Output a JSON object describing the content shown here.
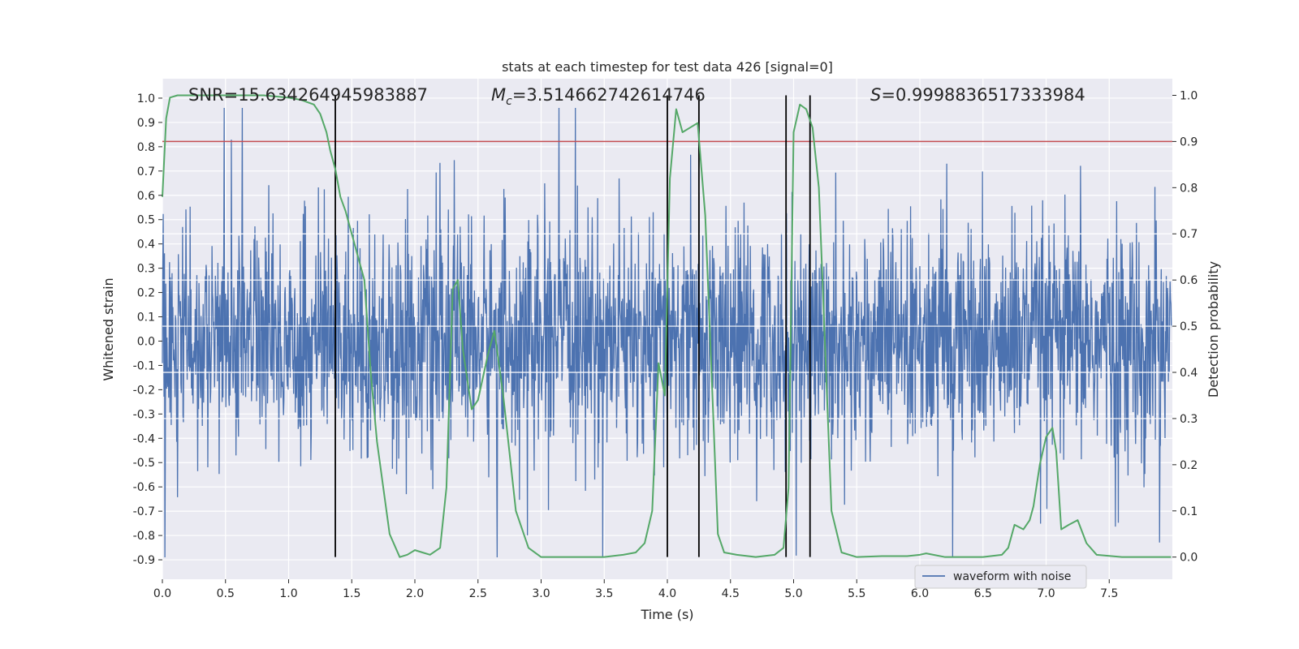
{
  "chart_data": {
    "type": "line",
    "title": "stats at each timestep for test data 426 [signal=0]",
    "xlabel": "Time (s)",
    "ylabel": "Whitened strain",
    "y2label": "Detection probability",
    "xlim": [
      0.0,
      8.0
    ],
    "ylim": [
      -0.98,
      1.08
    ],
    "y2lim": [
      -0.048,
      1.036
    ],
    "xticks": [
      "0.0",
      "0.5",
      "1.0",
      "1.5",
      "2.0",
      "2.5",
      "3.0",
      "3.5",
      "4.0",
      "4.5",
      "5.0",
      "5.5",
      "6.0",
      "6.5",
      "7.0",
      "7.5"
    ],
    "yticks": [
      "1.0",
      "0.9",
      "0.8",
      "0.7",
      "0.6",
      "0.5",
      "0.4",
      "0.3",
      "0.2",
      "0.1",
      "0.0",
      "-0.1",
      "-0.2",
      "-0.3",
      "-0.4",
      "-0.5",
      "-0.6",
      "-0.7",
      "-0.8",
      "-0.9"
    ],
    "y2ticks": [
      "0.0",
      "0.1",
      "0.2",
      "0.3",
      "0.4",
      "0.5",
      "0.6",
      "0.7",
      "0.8",
      "0.9",
      "1.0"
    ],
    "grid": true,
    "legend_placement": "bottom-right",
    "annotations": {
      "snr": "SNR=15.634264945983887",
      "mc_symbol": "M",
      "mc_sub": "c",
      "mc_value": "=3.514662742614746",
      "s_symbol": "S",
      "s_value": "=0.9998836517333984"
    },
    "series": [
      {
        "name": "waveform with noise",
        "color": "#4c72b0",
        "axis": "left",
        "note_style": "dense noise trace",
        "sample_count": 2400
      },
      {
        "name": "",
        "color": "#55a868",
        "axis": "right",
        "x": [
          0.0,
          0.03,
          0.06,
          0.12,
          0.2,
          0.4,
          0.6,
          0.8,
          1.0,
          1.1,
          1.2,
          1.25,
          1.3,
          1.33,
          1.37,
          1.41,
          1.45,
          1.5,
          1.55,
          1.6,
          1.65,
          1.7,
          1.8,
          1.88,
          1.94,
          2.0,
          2.06,
          2.12,
          2.2,
          2.25,
          2.3,
          2.34,
          2.38,
          2.45,
          2.5,
          2.58,
          2.63,
          2.7,
          2.8,
          2.9,
          3.0,
          3.2,
          3.5,
          3.65,
          3.75,
          3.82,
          3.88,
          3.93,
          3.98,
          4.02,
          4.07,
          4.12,
          4.18,
          4.24,
          4.3,
          4.35,
          4.4,
          4.45,
          4.55,
          4.7,
          4.85,
          4.92,
          4.96,
          5.0,
          5.05,
          5.1,
          5.15,
          5.2,
          5.25,
          5.3,
          5.38,
          5.5,
          5.7,
          5.9,
          6.0,
          6.05,
          6.2,
          6.5,
          6.65,
          6.7,
          6.75,
          6.82,
          6.87,
          6.9,
          6.95,
          7.0,
          7.05,
          7.08,
          7.12,
          7.18,
          7.25,
          7.32,
          7.4,
          7.6,
          7.8,
          7.99
        ],
        "values": [
          0.78,
          0.95,
          0.995,
          1.0,
          1.0,
          1.0,
          1.0,
          1.0,
          0.995,
          0.99,
          0.98,
          0.96,
          0.92,
          0.88,
          0.84,
          0.78,
          0.75,
          0.7,
          0.65,
          0.6,
          0.4,
          0.25,
          0.05,
          0.0,
          0.005,
          0.015,
          0.01,
          0.005,
          0.02,
          0.15,
          0.58,
          0.6,
          0.45,
          0.32,
          0.34,
          0.44,
          0.49,
          0.35,
          0.1,
          0.02,
          0.0,
          0.0,
          0.0,
          0.005,
          0.01,
          0.03,
          0.1,
          0.42,
          0.35,
          0.82,
          0.97,
          0.92,
          0.93,
          0.94,
          0.74,
          0.4,
          0.05,
          0.01,
          0.005,
          0.0,
          0.005,
          0.02,
          0.15,
          0.92,
          0.98,
          0.97,
          0.93,
          0.8,
          0.45,
          0.1,
          0.01,
          0.0,
          0.002,
          0.002,
          0.005,
          0.008,
          0.0,
          0.0,
          0.005,
          0.02,
          0.07,
          0.06,
          0.08,
          0.11,
          0.2,
          0.26,
          0.28,
          0.23,
          0.06,
          0.07,
          0.08,
          0.03,
          0.005,
          0.0,
          0.0,
          0.0
        ]
      }
    ],
    "threshold_line": {
      "value": 0.9,
      "axis": "right",
      "color": "#c44e52"
    },
    "vertical_lines_x": [
      1.37,
      4.0,
      4.25,
      4.94,
      5.13
    ],
    "vertical_lines_color": "#000000"
  }
}
